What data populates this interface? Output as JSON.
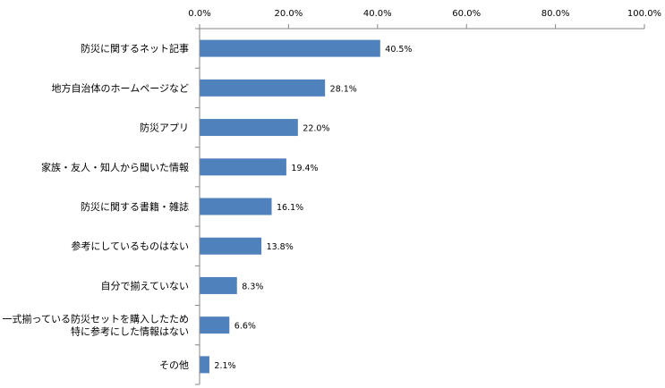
{
  "chart_data": {
    "type": "bar",
    "orientation": "horizontal",
    "categories": [
      [
        "防災に関するネット記事"
      ],
      [
        "地方自治体のホームページなど"
      ],
      [
        "防災アプリ"
      ],
      [
        "家族・友人・知人から聞いた情報"
      ],
      [
        "防災に関する書籍・雑誌"
      ],
      [
        "参考にしているものはない"
      ],
      [
        "自分で揃えていない"
      ],
      [
        "一式揃っている防災セットを購入したため",
        "特に参考にした情報はない"
      ],
      [
        "その他"
      ]
    ],
    "values": [
      40.5,
      28.1,
      22.0,
      19.4,
      16.1,
      13.8,
      8.3,
      6.6,
      2.1
    ],
    "value_labels": [
      "40.5%",
      "28.1%",
      "22.0%",
      "19.4%",
      "16.1%",
      "13.8%",
      "8.3%",
      "6.6%",
      "2.1%"
    ],
    "xlim": [
      0,
      100
    ],
    "xticks": [
      0,
      20,
      40,
      60,
      80,
      100
    ],
    "xtick_labels": [
      "0.0%",
      "20.0%",
      "40.0%",
      "60.0%",
      "80.0%",
      "100.0%"
    ],
    "axis_position": "top",
    "grid": false,
    "bar_color": "#4F81BD"
  }
}
